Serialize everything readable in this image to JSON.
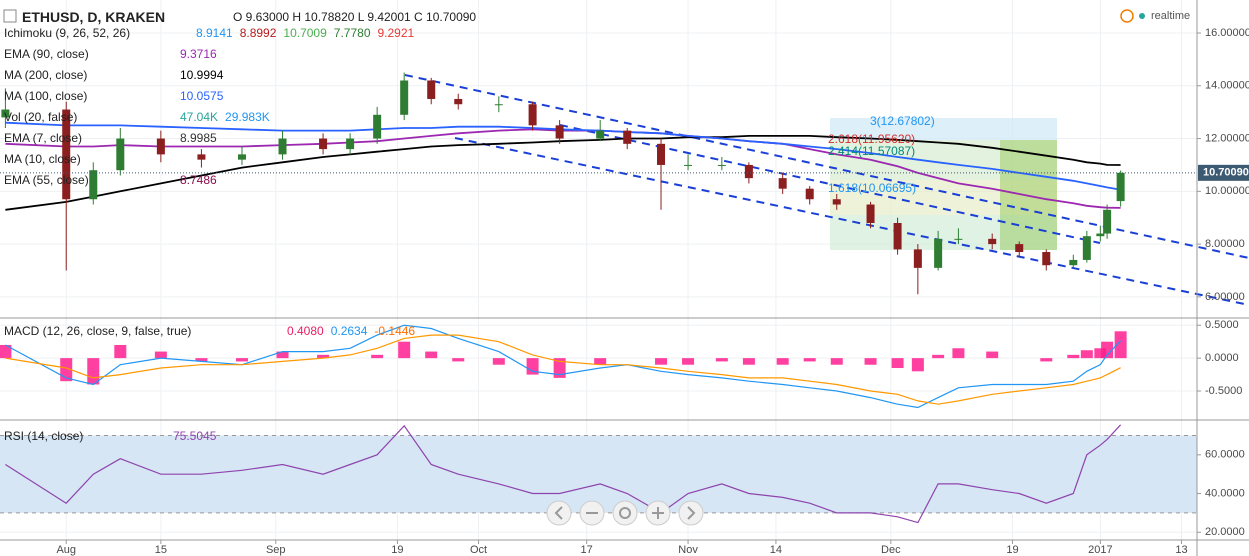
{
  "header": {
    "symbol": "ETHUSD, D, KRAKEN",
    "ohlc": "O 9.63000 H 10.78820 L 9.42001 C 10.70090",
    "status": "realtime"
  },
  "annotations": {
    "fib_labels": [
      {
        "text": "3(12.67802)",
        "color": "#2196f3"
      },
      {
        "text": "2.618(11.95620)",
        "color": "#d32f2f"
      },
      {
        "text": "2.414(11.57087)",
        "color": "#00897b"
      },
      {
        "text": "1.618(10.06695)",
        "color": "#2196f3"
      }
    ]
  },
  "chart_data": [
    {
      "type": "candlestick",
      "x": [
        -9,
        0,
        4,
        8,
        14,
        20,
        26,
        32,
        38,
        42,
        46,
        50,
        54,
        58,
        64,
        69,
        73,
        79,
        83,
        88,
        92,
        97,
        101,
        106,
        110,
        114,
        119,
        123,
        126,
        129,
        132,
        137,
        141,
        145,
        149,
        151,
        153,
        154,
        156
      ],
      "open": [
        12.8,
        13.1,
        9.7,
        10.8,
        12.0,
        11.4,
        11.2,
        11.4,
        12.0,
        11.6,
        12.0,
        12.9,
        14.2,
        13.5,
        13.3,
        13.3,
        12.5,
        12.0,
        12.3,
        11.8,
        11.0,
        11.0,
        11.0,
        10.5,
        10.1,
        9.7,
        9.5,
        8.8,
        7.8,
        7.1,
        8.2,
        8.2,
        8.0,
        7.7,
        7.2,
        7.4,
        8.3,
        8.4,
        9.63
      ],
      "high": [
        13.9,
        13.4,
        11.1,
        12.4,
        12.3,
        11.6,
        11.7,
        12.3,
        12.2,
        12.2,
        13.2,
        14.5,
        14.3,
        13.7,
        13.6,
        13.4,
        12.7,
        12.7,
        12.4,
        12.0,
        11.4,
        11.3,
        11.1,
        10.7,
        10.2,
        9.9,
        9.6,
        9.0,
        8.0,
        8.5,
        8.6,
        8.4,
        8.1,
        7.8,
        7.6,
        8.5,
        8.7,
        9.5,
        10.7882
      ],
      "low": [
        12.4,
        7.0,
        9.5,
        10.6,
        11.1,
        10.9,
        11.0,
        11.2,
        11.4,
        11.4,
        11.8,
        12.7,
        13.3,
        13.1,
        13.0,
        12.3,
        11.8,
        11.9,
        11.6,
        9.3,
        10.8,
        10.8,
        10.3,
        9.9,
        9.5,
        9.3,
        8.6,
        7.6,
        6.1,
        7.0,
        8.0,
        7.8,
        7.5,
        7.0,
        7.1,
        7.3,
        8.1,
        8.2,
        9.42001
      ],
      "close": [
        13.1,
        9.7,
        10.8,
        12.0,
        11.4,
        11.2,
        11.4,
        12.0,
        11.6,
        12.0,
        12.9,
        14.2,
        13.5,
        13.3,
        13.3,
        12.5,
        12.0,
        12.3,
        11.8,
        11.0,
        11.0,
        11.0,
        10.5,
        10.1,
        9.7,
        9.5,
        8.8,
        7.8,
        7.1,
        8.2,
        8.2,
        8.0,
        7.7,
        7.2,
        7.4,
        8.3,
        8.4,
        9.3,
        10.7009
      ],
      "up_color": "#2e7d32",
      "down_color": "#8b1e1e",
      "series": [
        {
          "color": "#000000",
          "values": [
            9.3,
            9.6,
            9.8,
            10.0,
            10.3,
            10.6,
            10.9,
            11.1,
            11.3,
            11.4,
            11.5,
            11.6,
            11.7,
            11.75,
            11.8,
            11.85,
            11.9,
            11.95,
            12.0,
            12.0,
            12.05,
            12.05,
            12.1,
            12.1,
            12.1,
            12.05,
            12.0,
            11.95,
            11.9,
            11.85,
            11.8,
            11.65,
            11.5,
            11.35,
            11.2,
            11.1,
            11.05,
            11.0,
            10.9994
          ]
        },
        {
          "color": "#9c27b0",
          "values": [
            11.8,
            11.7,
            11.7,
            11.75,
            11.7,
            11.7,
            11.7,
            11.75,
            11.8,
            11.85,
            11.9,
            12.0,
            12.1,
            12.2,
            12.3,
            12.35,
            12.3,
            12.3,
            12.25,
            12.2,
            12.1,
            12.0,
            11.9,
            11.8,
            11.6,
            11.4,
            11.2,
            10.95,
            10.7,
            10.5,
            10.3,
            10.1,
            9.9,
            9.7,
            9.55,
            9.45,
            9.4,
            9.38,
            9.3716
          ]
        },
        {
          "color": "#2962ff",
          "values": [
            12.6,
            12.5,
            12.5,
            12.5,
            12.45,
            12.4,
            12.35,
            12.3,
            12.3,
            12.3,
            12.35,
            12.4,
            12.4,
            12.45,
            12.45,
            12.4,
            12.35,
            12.3,
            12.25,
            12.2,
            12.1,
            12.0,
            11.9,
            11.8,
            11.7,
            11.6,
            11.45,
            11.3,
            11.2,
            11.1,
            11.0,
            10.85,
            10.7,
            10.55,
            10.4,
            10.3,
            10.2,
            10.15,
            10.0575
          ]
        }
      ],
      "legend": [
        {
          "name": "Ichimoku (9, 26, 52, 26)",
          "values": [
            "8.9141",
            "8.8992",
            "10.7009",
            "7.7780",
            "9.2921"
          ],
          "colors": [
            "#2196f3",
            "#b71c1c",
            "#4caf50",
            "#2e7d32",
            "#e53935"
          ]
        },
        {
          "name": "EMA (90, close)",
          "values": [
            "9.3716"
          ],
          "colors": [
            "#9c27b0"
          ]
        },
        {
          "name": "MA (200, close)",
          "values": [
            "10.9994"
          ],
          "colors": [
            "#000000"
          ]
        },
        {
          "name": "MA (100, close)",
          "values": [
            "10.0575"
          ],
          "colors": [
            "#2962ff"
          ]
        },
        {
          "name": "Vol (20, false)",
          "values": [
            "47.04K",
            "29.983K"
          ],
          "colors": [
            "#26a69a",
            "#2196f3"
          ]
        },
        {
          "name": "EMA (7, close)",
          "values": [
            "8.9985"
          ],
          "colors": [
            "#333333"
          ]
        },
        {
          "name": "MA (10, close)",
          "values": [],
          "colors": []
        },
        {
          "name": "EMA (55, close)",
          "values": [
            "8.7486"
          ],
          "colors": [
            "#880e4f"
          ]
        }
      ],
      "last_price": {
        "value": 10.7009,
        "label": "10.70090"
      },
      "xlim": [
        -9.8,
        167.3
      ],
      "xticks": [
        {
          "value": 0,
          "label": "Aug"
        },
        {
          "value": 14,
          "label": "15"
        },
        {
          "value": 31,
          "label": "Sep"
        },
        {
          "value": 49,
          "label": "19"
        },
        {
          "value": 61,
          "label": "Oct"
        },
        {
          "value": 77,
          "label": "17"
        },
        {
          "value": 92,
          "label": "Nov"
        },
        {
          "value": 105,
          "label": "14"
        },
        {
          "value": 122,
          "label": "Dec"
        },
        {
          "value": 140,
          "label": "19"
        },
        {
          "value": 153,
          "label": "2017"
        },
        {
          "value": 165,
          "label": "13"
        }
      ],
      "ylim": [
        5.2,
        17.25
      ],
      "yticks": [
        {
          "value": 6,
          "label": "6.00000"
        },
        {
          "value": 8,
          "label": "8.00000"
        },
        {
          "value": 10,
          "label": "10.00000"
        },
        {
          "value": 12,
          "label": "12.00000"
        },
        {
          "value": 14,
          "label": "14.00000"
        },
        {
          "value": 16,
          "label": "16.00000"
        }
      ],
      "grid": true
    },
    {
      "type": "macd",
      "legend": [
        {
          "name": "MACD (12, 26, close, 9, false, true)",
          "values": [
            "0.4080",
            "0.2634",
            "-0.1446"
          ],
          "colors": [
            "#e91e63",
            "#2196f3",
            "#ff6d00"
          ]
        }
      ],
      "histogram": {
        "color": "#ff1f8f",
        "values": [
          0.2,
          -0.35,
          -0.4,
          0.2,
          0.1,
          -0.05,
          -0.05,
          0.1,
          0.05,
          0.0,
          0.05,
          0.25,
          0.1,
          -0.05,
          -0.1,
          -0.25,
          -0.3,
          -0.1,
          0.0,
          -0.1,
          -0.1,
          -0.05,
          -0.1,
          -0.1,
          -0.05,
          -0.1,
          -0.1,
          -0.15,
          -0.2,
          0.05,
          0.15,
          0.1,
          0.0,
          -0.05,
          0.05,
          0.12,
          0.15,
          0.25,
          0.408
        ]
      },
      "series": [
        {
          "color": "#2196f3",
          "values": [
            0.2,
            -0.3,
            -0.4,
            -0.1,
            0.0,
            -0.05,
            -0.1,
            0.1,
            0.1,
            0.15,
            0.35,
            0.5,
            0.45,
            0.3,
            0.1,
            -0.2,
            -0.25,
            -0.15,
            -0.1,
            -0.2,
            -0.25,
            -0.3,
            -0.35,
            -0.4,
            -0.45,
            -0.5,
            -0.6,
            -0.7,
            -0.75,
            -0.6,
            -0.45,
            -0.4,
            -0.4,
            -0.4,
            -0.35,
            -0.2,
            -0.1,
            0.05,
            0.2634
          ]
        },
        {
          "color": "#ff9800",
          "values": [
            0.0,
            -0.15,
            -0.3,
            -0.25,
            -0.15,
            -0.1,
            -0.1,
            -0.05,
            0.0,
            0.05,
            0.15,
            0.3,
            0.35,
            0.35,
            0.25,
            0.05,
            -0.05,
            -0.1,
            -0.1,
            -0.15,
            -0.2,
            -0.25,
            -0.3,
            -0.3,
            -0.35,
            -0.4,
            -0.5,
            -0.55,
            -0.65,
            -0.7,
            -0.65,
            -0.55,
            -0.5,
            -0.45,
            -0.4,
            -0.35,
            -0.3,
            -0.25,
            -0.1446
          ]
        }
      ],
      "ylim": [
        -0.94,
        0.61
      ],
      "yticks": [
        {
          "value": 0.5,
          "label": "0.5000"
        },
        {
          "value": 0,
          "label": "0.0000"
        },
        {
          "value": -0.5,
          "label": "-0.5000"
        }
      ],
      "grid": true
    },
    {
      "type": "line",
      "legend": [
        {
          "name": "RSI (14, close)",
          "values": [
            "75.5045"
          ],
          "colors": [
            "#8e44ad"
          ]
        }
      ],
      "color": "#8e44ad",
      "values": [
        55,
        35,
        50,
        58,
        50,
        50,
        52,
        55,
        50,
        55,
        60,
        75,
        55,
        50,
        45,
        40,
        40,
        45,
        40,
        30,
        40,
        45,
        40,
        38,
        35,
        30,
        30,
        28,
        25,
        45,
        45,
        42,
        40,
        35,
        40,
        60,
        65,
        68,
        75.5045
      ],
      "band": [
        30,
        70
      ],
      "band_color": "#d6e6f5",
      "ylim": [
        16,
        78
      ],
      "yticks": [
        {
          "value": 20,
          "label": "20.0000"
        },
        {
          "value": 40,
          "label": "40.0000"
        },
        {
          "value": 60,
          "label": "60.0000"
        }
      ],
      "grid": true
    }
  ]
}
